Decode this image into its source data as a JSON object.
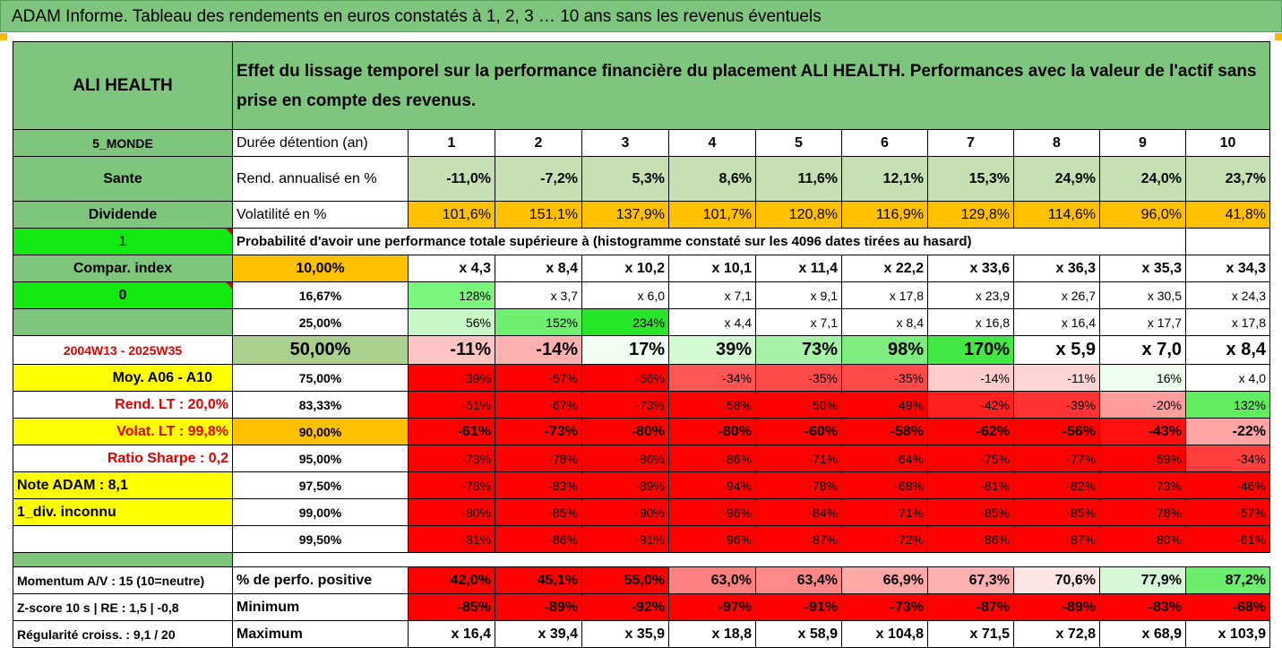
{
  "title": "ADAM Informe. Tableau des rendements en euros constatés à 1, 2, 3 … 10 ans sans les revenus éventuels",
  "asset_name": "ALI HEALTH",
  "description": "Effet du lissage temporel sur la performance financière du placement ALI HEALTH. Performances avec la valeur de l'actif sans prise en compte des revenus.",
  "sidebar": {
    "zone": "5_MONDE",
    "sector": "Sante",
    "dividend_label": "Dividende",
    "dividend_value": "1",
    "compar_label": "Compar. index",
    "compar_value": "0",
    "period": "2004W13 - 2025W35",
    "moy": "Moy. A06 - A10",
    "rend_lt": "Rend. LT :   20,0%",
    "volat_lt": "Volat. LT :   99,8%",
    "sharpe": "Ratio Sharpe :    0,2",
    "note": "Note ADAM : 8,1",
    "div": "1_div. inconnu"
  },
  "header": {
    "duration_label": "Durée détention (an)",
    "years": [
      "1",
      "2",
      "3",
      "4",
      "5",
      "6",
      "7",
      "8",
      "9",
      "10"
    ],
    "rend_label": "Rend. annualisé en %",
    "rend": [
      "-11,0%",
      "-7,2%",
      "5,3%",
      "8,6%",
      "11,6%",
      "12,1%",
      "15,3%",
      "24,9%",
      "24,0%",
      "23,7%"
    ],
    "vol_label": "Volatilité en %",
    "vol": [
      "101,6%",
      "151,1%",
      "137,9%",
      "101,7%",
      "120,8%",
      "116,9%",
      "129,8%",
      "114,6%",
      "96,0%",
      "41,8%"
    ],
    "prob_label": "Probabilité d'avoir une performance totale supérieure à (histogramme constaté sur les 4096 dates tirées au hasard)"
  },
  "prob_rows": [
    {
      "p": "10,00%",
      "v": [
        "x 4,3",
        "x 8,4",
        "x 10,2",
        "x 10,1",
        "x 11,4",
        "x 22,2",
        "x 33,6",
        "x 36,3",
        "x 35,3",
        "x 34,3"
      ]
    },
    {
      "p": "16,67%",
      "v": [
        "128%",
        "x 3,7",
        "x 6,0",
        "x 7,1",
        "x 9,1",
        "x 17,8",
        "x 23,9",
        "x 26,7",
        "x 30,5",
        "x 24,3"
      ]
    },
    {
      "p": "25,00%",
      "v": [
        "56%",
        "152%",
        "234%",
        "x 4,4",
        "x 7,1",
        "x 8,4",
        "x 16,8",
        "x 16,4",
        "x 17,7",
        "x 17,8"
      ]
    },
    {
      "p": "50,00%",
      "v": [
        "-11%",
        "-14%",
        "17%",
        "39%",
        "73%",
        "98%",
        "170%",
        "x 5,9",
        "x 7,0",
        "x 8,4"
      ]
    },
    {
      "p": "75,00%",
      "v": [
        "-39%",
        "-57%",
        "-56%",
        "-34%",
        "-35%",
        "-35%",
        "-14%",
        "-11%",
        "16%",
        "x 4,0"
      ]
    },
    {
      "p": "83,33%",
      "v": [
        "-51%",
        "-67%",
        "-73%",
        "-58%",
        "-50%",
        "-49%",
        "-42%",
        "-39%",
        "-20%",
        "132%"
      ]
    },
    {
      "p": "90,00%",
      "v": [
        "-61%",
        "-73%",
        "-80%",
        "-80%",
        "-60%",
        "-58%",
        "-62%",
        "-56%",
        "-43%",
        "-22%"
      ]
    },
    {
      "p": "95,00%",
      "v": [
        "-73%",
        "-78%",
        "-86%",
        "-86%",
        "-71%",
        "-64%",
        "-75%",
        "-77%",
        "-59%",
        "-34%"
      ]
    },
    {
      "p": "97,50%",
      "v": [
        "-78%",
        "-83%",
        "-89%",
        "-94%",
        "-78%",
        "-68%",
        "-81%",
        "-82%",
        "-73%",
        "-46%"
      ]
    },
    {
      "p": "99,00%",
      "v": [
        "-80%",
        "-85%",
        "-90%",
        "-96%",
        "-84%",
        "-71%",
        "-85%",
        "-85%",
        "-78%",
        "-57%"
      ]
    },
    {
      "p": "99,50%",
      "v": [
        "-81%",
        "-86%",
        "-91%",
        "-96%",
        "-87%",
        "-72%",
        "-86%",
        "-87%",
        "-80%",
        "-61%"
      ]
    }
  ],
  "bottom": {
    "momentum": "Momentum A/V : 15 (10=neutre)",
    "zscore": "Z-score 10 s  |  RE : 1,5  |  -0,8",
    "regularite": "Régularité croiss. : 9,1 / 20",
    "pos_label": "% de perfo. positive",
    "pos": [
      "42,0%",
      "45,1%",
      "55,0%",
      "63,0%",
      "63,4%",
      "66,9%",
      "67,3%",
      "70,6%",
      "77,9%",
      "87,2%"
    ],
    "min_label": "Minimum",
    "min": [
      "-85%",
      "-89%",
      "-92%",
      "-97%",
      "-91%",
      "-73%",
      "-87%",
      "-89%",
      "-83%",
      "-68%"
    ],
    "max_label": "Maximum",
    "max": [
      "x 16,4",
      "x 39,4",
      "x 35,9",
      "x 18,8",
      "x 58,9",
      "x 104,8",
      "x 71,5",
      "x 72,8",
      "x 68,9",
      "x 103,9"
    ]
  },
  "colors": {
    "header_green": "#7ec67e",
    "bright_green": "#13e813",
    "yellow": "#ffff00",
    "orange": "#ffc000",
    "rend_fill": "#c6e0b4",
    "red": "#ff0000",
    "prob_fills": [
      [
        "#ffffff",
        "#ffffff",
        "#ffffff",
        "#ffffff",
        "#ffffff",
        "#ffffff",
        "#ffffff",
        "#ffffff",
        "#ffffff",
        "#ffffff"
      ],
      [
        "#7cf57c",
        "#ffffff",
        "#ffffff",
        "#ffffff",
        "#ffffff",
        "#ffffff",
        "#ffffff",
        "#ffffff",
        "#ffffff",
        "#ffffff"
      ],
      [
        "#c8f8c8",
        "#6ef06e",
        "#27e627",
        "#ffffff",
        "#ffffff",
        "#ffffff",
        "#ffffff",
        "#ffffff",
        "#ffffff",
        "#ffffff"
      ],
      [
        "#ffc4c4",
        "#ffb0b0",
        "#f2fff2",
        "#d4fad4",
        "#a6f2a6",
        "#7eec7e",
        "#44e844",
        "#ffffff",
        "#ffffff",
        "#ffffff"
      ],
      [
        "#ff0000",
        "#ff0000",
        "#ff0000",
        "#ff5555",
        "#ff4a4a",
        "#ff4a4a",
        "#ffcccc",
        "#ffd4d4",
        "#eefcee",
        "#ffffff"
      ],
      [
        "#ff0000",
        "#ff0000",
        "#ff0000",
        "#ff0000",
        "#ff0000",
        "#ff0000",
        "#ff2020",
        "#ff3333",
        "#ff9d9d",
        "#5fec5f"
      ],
      [
        "#ff0000",
        "#ff0000",
        "#ff0000",
        "#ff0000",
        "#ff0000",
        "#ff0000",
        "#ff0000",
        "#ff0000",
        "#ff0f0f",
        "#ffa4a4"
      ],
      [
        "#ff0000",
        "#ff0000",
        "#ff0000",
        "#ff0000",
        "#ff0000",
        "#ff0000",
        "#ff0000",
        "#ff0000",
        "#ff0000",
        "#ff3e3e"
      ],
      [
        "#ff0000",
        "#ff0000",
        "#ff0000",
        "#ff0000",
        "#ff0000",
        "#ff0000",
        "#ff0000",
        "#ff0000",
        "#ff0000",
        "#ff0000"
      ],
      [
        "#ff0000",
        "#ff0000",
        "#ff0000",
        "#ff0000",
        "#ff0000",
        "#ff0000",
        "#ff0000",
        "#ff0000",
        "#ff0000",
        "#ff0000"
      ],
      [
        "#ff0000",
        "#ff0000",
        "#ff0000",
        "#ff0000",
        "#ff0000",
        "#ff0000",
        "#ff0000",
        "#ff0000",
        "#ff0000",
        "#ff0000"
      ]
    ],
    "pos_fills": [
      "#ff0000",
      "#ff0000",
      "#ff0000",
      "#ff8080",
      "#ff8888",
      "#ffa8a8",
      "#ffb0b0",
      "#ffe6e6",
      "#d6f8d6",
      "#6eec6e"
    ]
  }
}
